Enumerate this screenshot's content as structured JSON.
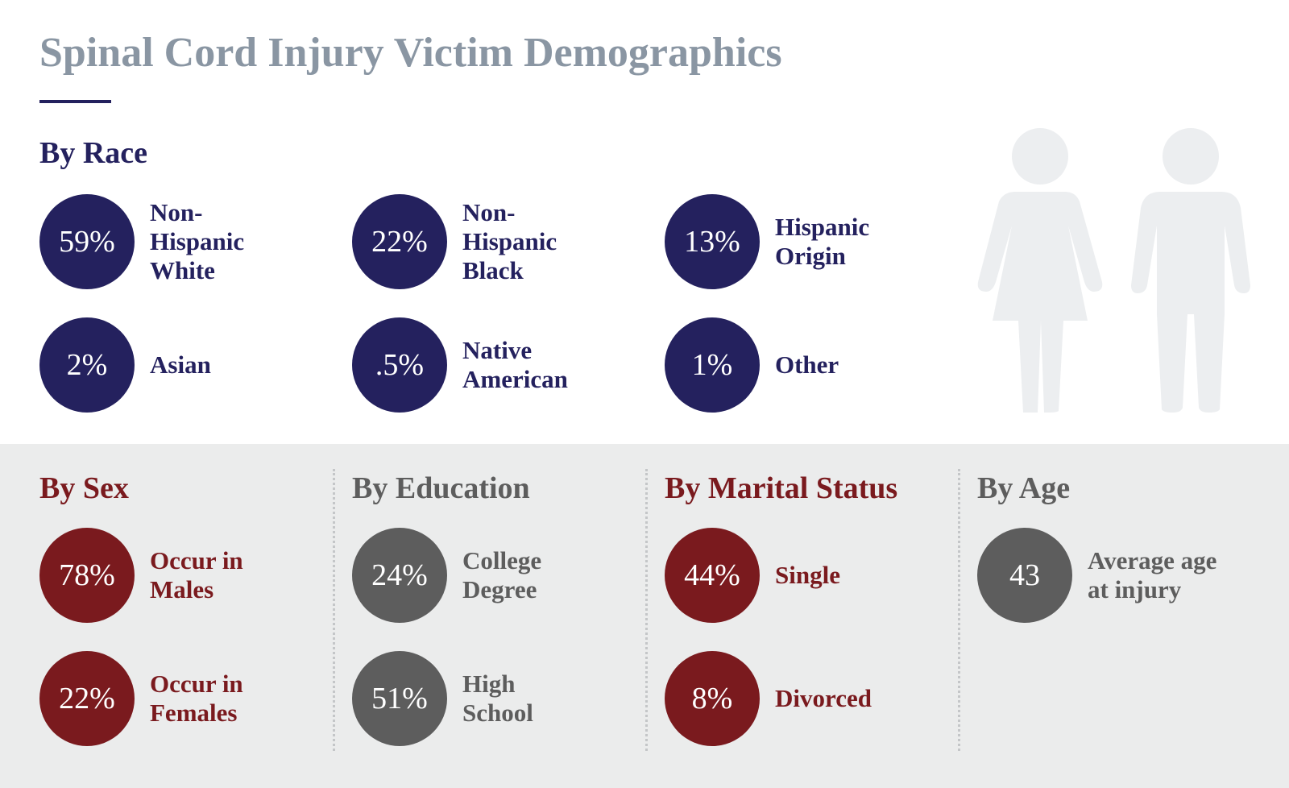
{
  "header": {
    "title": "Spinal Cord Injury Victim Demographics"
  },
  "race": {
    "heading": "By Race",
    "color": "#24215e",
    "items": [
      {
        "value": "59%",
        "lines": [
          "Non-",
          "Hispanic",
          "White"
        ]
      },
      {
        "value": "22%",
        "lines": [
          "Non-",
          "Hispanic",
          "Black"
        ]
      },
      {
        "value": "13%",
        "lines": [
          "Hispanic",
          "Origin"
        ]
      },
      {
        "value": "2%",
        "lines": [
          "Asian"
        ]
      },
      {
        "value": ".5%",
        "lines": [
          "Native",
          "American"
        ]
      },
      {
        "value": "1%",
        "lines": [
          "Other"
        ]
      }
    ]
  },
  "groups": [
    {
      "heading": "By Sex",
      "color": "#7a1a1e",
      "items": [
        {
          "value": "78%",
          "lines": [
            "Occur in",
            "Males"
          ]
        },
        {
          "value": "22%",
          "lines": [
            "Occur in",
            "Females"
          ]
        }
      ]
    },
    {
      "heading": "By Education",
      "color": "#5d5d5d",
      "items": [
        {
          "value": "24%",
          "lines": [
            "College",
            "Degree"
          ]
        },
        {
          "value": "51%",
          "lines": [
            "High",
            "School"
          ]
        }
      ]
    },
    {
      "heading": "By Marital Status",
      "color": "#7a1a1e",
      "items": [
        {
          "value": "44%",
          "lines": [
            "Single"
          ]
        },
        {
          "value": "8%",
          "lines": [
            "Divorced"
          ]
        }
      ]
    },
    {
      "heading": "By Age",
      "color": "#5d5d5d",
      "items": [
        {
          "value": "43",
          "lines": [
            "Average age",
            "at injury"
          ]
        }
      ]
    }
  ]
}
